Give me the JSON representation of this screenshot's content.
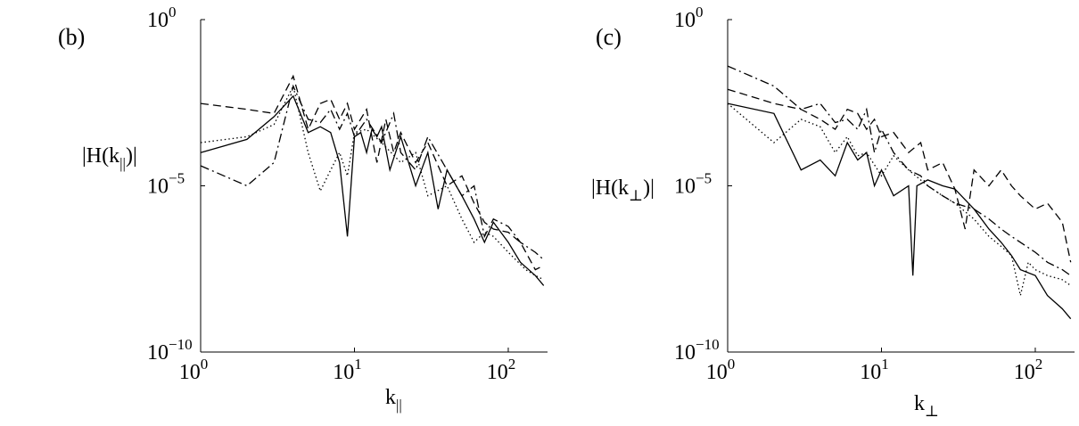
{
  "chart_data": [
    {
      "type": "line",
      "panel_label": "(b)",
      "xlabel": "k",
      "xlabel_sub": "||",
      "ylabel_pre": "|H(k",
      "ylabel_sub": "||",
      "ylabel_post": ")|",
      "xscale": "log",
      "yscale": "log",
      "xlim": [
        1,
        180
      ],
      "ylim": [
        1e-10,
        1
      ],
      "x_ticks": [
        {
          "value": 1,
          "base": "10",
          "exp": "0"
        },
        {
          "value": 10,
          "base": "10",
          "exp": "1"
        },
        {
          "value": 100,
          "base": "10",
          "exp": "2"
        }
      ],
      "y_ticks": [
        {
          "value": 1e-10,
          "base": "10",
          "exp": "−10"
        },
        {
          "value": 1e-05,
          "base": "10",
          "exp": "−5"
        },
        {
          "value": 1,
          "base": "10",
          "exp": "0"
        }
      ],
      "series": [
        {
          "style": "solid",
          "points": [
            [
              1,
              0.0001
            ],
            [
              2,
              0.00025
            ],
            [
              3,
              0.0012
            ],
            [
              4,
              0.005
            ],
            [
              5,
              0.0004
            ],
            [
              6,
              0.0006
            ],
            [
              7,
              0.0004
            ],
            [
              8,
              5e-05
            ],
            [
              9,
              3e-07
            ],
            [
              10,
              0.0003
            ],
            [
              11,
              0.0004
            ],
            [
              12,
              0.0001
            ],
            [
              13,
              0.0005
            ],
            [
              14,
              0.0003
            ],
            [
              15,
              0.0006
            ],
            [
              17,
              3e-05
            ],
            [
              20,
              0.0003
            ],
            [
              25,
              1e-05
            ],
            [
              30,
              0.0001
            ],
            [
              35,
              2e-06
            ],
            [
              40,
              3e-05
            ],
            [
              50,
              5e-06
            ],
            [
              60,
              1e-06
            ],
            [
              70,
              2e-07
            ],
            [
              80,
              8e-07
            ],
            [
              100,
              2e-07
            ],
            [
              120,
              5e-08
            ],
            [
              150,
              2e-08
            ],
            [
              170,
              1e-08
            ]
          ]
        },
        {
          "style": "dashed",
          "points": [
            [
              1,
              0.003
            ],
            [
              2,
              0.002
            ],
            [
              3,
              0.0015
            ],
            [
              4,
              0.02
            ],
            [
              5,
              0.0005
            ],
            [
              6,
              0.003
            ],
            [
              7,
              0.004
            ],
            [
              8,
              0.001
            ],
            [
              9,
              0.003
            ],
            [
              10,
              0.0005
            ],
            [
              12,
              0.002
            ],
            [
              14,
              5e-05
            ],
            [
              16,
              0.001
            ],
            [
              18,
              0.0001
            ],
            [
              20,
              0.0004
            ],
            [
              25,
              5e-05
            ],
            [
              30,
              0.0002
            ],
            [
              40,
              1e-05
            ],
            [
              50,
              2e-05
            ],
            [
              60,
              3e-06
            ],
            [
              70,
              8e-07
            ],
            [
              80,
              5e-07
            ],
            [
              100,
              4e-07
            ],
            [
              120,
              2e-07
            ],
            [
              150,
              3e-08
            ],
            [
              170,
              4e-08
            ]
          ]
        },
        {
          "style": "dotted",
          "points": [
            [
              1,
              0.0002
            ],
            [
              2,
              0.0003
            ],
            [
              3,
              0.0007
            ],
            [
              4,
              0.01
            ],
            [
              5,
              0.0001
            ],
            [
              6,
              7e-06
            ],
            [
              7,
              3e-05
            ],
            [
              8,
              0.0001
            ],
            [
              9,
              2e-05
            ],
            [
              10,
              0.0004
            ],
            [
              12,
              0.0005
            ],
            [
              15,
              0.0002
            ],
            [
              20,
              5e-05
            ],
            [
              25,
              0.0001
            ],
            [
              30,
              5e-06
            ],
            [
              40,
              1e-05
            ],
            [
              50,
              1e-06
            ],
            [
              60,
              2e-07
            ],
            [
              70,
              4e-07
            ],
            [
              80,
              3e-07
            ],
            [
              100,
              1e-07
            ],
            [
              130,
              3e-08
            ],
            [
              150,
              2e-08
            ],
            [
              170,
              1.5e-08
            ]
          ]
        },
        {
          "style": "dashdot",
          "points": [
            [
              1,
              4e-05
            ],
            [
              2,
              1e-05
            ],
            [
              3,
              5e-05
            ],
            [
              4,
              0.01
            ],
            [
              5,
              0.001
            ],
            [
              6,
              0.0008
            ],
            [
              7,
              0.002
            ],
            [
              8,
              0.0005
            ],
            [
              9,
              0.0015
            ],
            [
              10,
              0.0003
            ],
            [
              12,
              0.001
            ],
            [
              15,
              0.0002
            ],
            [
              18,
              0.0015
            ],
            [
              20,
              0.0001
            ],
            [
              25,
              3e-05
            ],
            [
              30,
              0.0003
            ],
            [
              40,
              3e-05
            ],
            [
              50,
              5e-06
            ],
            [
              60,
              1e-05
            ],
            [
              70,
              3e-07
            ],
            [
              80,
              1e-06
            ],
            [
              100,
              6e-07
            ],
            [
              120,
              2e-07
            ],
            [
              150,
              1e-07
            ],
            [
              170,
              6e-08
            ]
          ]
        }
      ]
    },
    {
      "type": "line",
      "panel_label": "(c)",
      "xlabel": "k",
      "xlabel_sub": "⊥",
      "ylabel_pre": "|H(k",
      "ylabel_sub": "⊥",
      "ylabel_post": ")|",
      "xscale": "log",
      "yscale": "log",
      "xlim": [
        1,
        180
      ],
      "ylim": [
        1e-10,
        1
      ],
      "x_ticks": [
        {
          "value": 1,
          "base": "10",
          "exp": "0"
        },
        {
          "value": 10,
          "base": "10",
          "exp": "1"
        },
        {
          "value": 100,
          "base": "10",
          "exp": "2"
        }
      ],
      "y_ticks": [
        {
          "value": 1e-10,
          "base": "10",
          "exp": "−10"
        },
        {
          "value": 1e-05,
          "base": "10",
          "exp": "−5"
        },
        {
          "value": 1,
          "base": "10",
          "exp": "0"
        }
      ],
      "series": [
        {
          "style": "solid",
          "points": [
            [
              1,
              0.003
            ],
            [
              2,
              0.0015
            ],
            [
              3,
              3e-05
            ],
            [
              4,
              6e-05
            ],
            [
              5,
              2e-05
            ],
            [
              6,
              0.0002
            ],
            [
              7,
              6e-05
            ],
            [
              8,
              0.0001
            ],
            [
              9,
              1e-05
            ],
            [
              10,
              3e-05
            ],
            [
              12,
              5e-06
            ],
            [
              15,
              1e-05
            ],
            [
              16,
              2e-08
            ],
            [
              17,
              1e-05
            ],
            [
              20,
              1.5e-05
            ],
            [
              25,
              1e-05
            ],
            [
              30,
              8e-06
            ],
            [
              40,
              2e-06
            ],
            [
              50,
              5e-07
            ],
            [
              60,
              2e-07
            ],
            [
              70,
              8e-08
            ],
            [
              80,
              3e-08
            ],
            [
              100,
              2e-08
            ],
            [
              120,
              5e-09
            ],
            [
              150,
              2e-09
            ],
            [
              170,
              1e-09
            ]
          ]
        },
        {
          "style": "dashed",
          "points": [
            [
              1,
              0.008
            ],
            [
              2,
              0.003
            ],
            [
              3,
              0.002
            ],
            [
              4,
              0.001
            ],
            [
              5,
              0.0005
            ],
            [
              6,
              0.002
            ],
            [
              7,
              0.0015
            ],
            [
              8,
              0.0005
            ],
            [
              9,
              0.001
            ],
            [
              10,
              0.0003
            ],
            [
              12,
              0.0004
            ],
            [
              15,
              0.0001
            ],
            [
              18,
              0.0002
            ],
            [
              20,
              3e-05
            ],
            [
              25,
              5e-05
            ],
            [
              30,
              8e-06
            ],
            [
              35,
              5e-07
            ],
            [
              40,
              3e-05
            ],
            [
              50,
              1e-05
            ],
            [
              60,
              3e-05
            ],
            [
              70,
              1e-05
            ],
            [
              80,
              5e-06
            ],
            [
              100,
              2e-06
            ],
            [
              120,
              3e-06
            ],
            [
              150,
              8e-07
            ],
            [
              170,
              5e-08
            ]
          ]
        },
        {
          "style": "dotted",
          "points": [
            [
              1,
              0.003
            ],
            [
              2,
              0.0002
            ],
            [
              3,
              0.001
            ],
            [
              4,
              0.0006
            ],
            [
              5,
              0.0001
            ],
            [
              6,
              0.0003
            ],
            [
              7,
              8e-05
            ],
            [
              8,
              0.0001
            ],
            [
              10,
              2e-05
            ],
            [
              12,
              8e-05
            ],
            [
              15,
              3e-05
            ],
            [
              20,
              1e-05
            ],
            [
              25,
              5e-06
            ],
            [
              30,
              3e-06
            ],
            [
              40,
              1e-06
            ],
            [
              50,
              3e-07
            ],
            [
              60,
              1.5e-07
            ],
            [
              70,
              8e-08
            ],
            [
              80,
              5e-09
            ],
            [
              90,
              5e-08
            ],
            [
              100,
              3e-08
            ],
            [
              120,
              2e-08
            ],
            [
              150,
              1.5e-08
            ],
            [
              170,
              1e-08
            ]
          ]
        },
        {
          "style": "dashdot",
          "points": [
            [
              1,
              0.04
            ],
            [
              2,
              0.01
            ],
            [
              3,
              0.002
            ],
            [
              4,
              0.003
            ],
            [
              5,
              0.0008
            ],
            [
              6,
              0.001
            ],
            [
              7,
              0.0005
            ],
            [
              8,
              0.002
            ],
            [
              9,
              0.0001
            ],
            [
              10,
              0.0005
            ],
            [
              12,
              0.0001
            ],
            [
              15,
              3e-05
            ],
            [
              18,
              2e-05
            ],
            [
              20,
              1e-05
            ],
            [
              25,
              5e-06
            ],
            [
              30,
              3e-06
            ],
            [
              40,
              2e-06
            ],
            [
              50,
              1e-06
            ],
            [
              60,
              5e-07
            ],
            [
              70,
              3e-07
            ],
            [
              80,
              2e-07
            ],
            [
              100,
              1e-07
            ],
            [
              120,
              5e-08
            ],
            [
              150,
              3e-08
            ],
            [
              170,
              2e-08
            ]
          ]
        }
      ]
    }
  ]
}
